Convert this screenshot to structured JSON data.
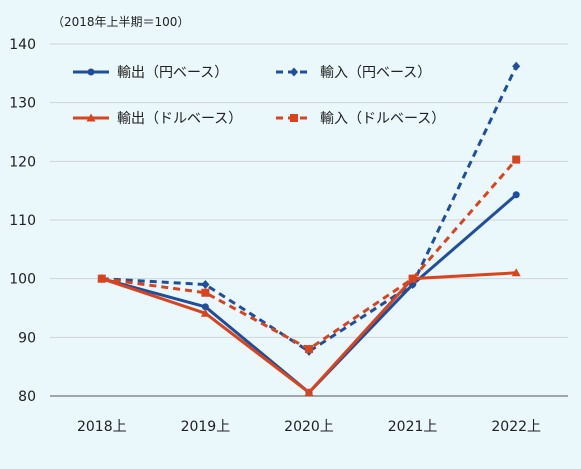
{
  "chart_data": {
    "type": "line",
    "unit_note": "（2018年上半期＝100）",
    "categories": [
      "2018上",
      "2019上",
      "2020上",
      "2021上",
      "2022上"
    ],
    "ylim": [
      80,
      140
    ],
    "yticks": [
      80,
      90,
      100,
      110,
      120,
      130,
      140
    ],
    "grid": true,
    "legend_position": "top",
    "series": [
      {
        "name": "輸出（円ベース）",
        "values": [
          100,
          95.2,
          80.6,
          99,
          114.3
        ],
        "color": "#1f4e9c",
        "dash": false,
        "marker": "circle"
      },
      {
        "name": "輸入（円ベース）",
        "values": [
          100,
          99,
          87.6,
          99,
          136.2
        ],
        "color": "#1f4e9c",
        "dash": true,
        "marker": "diamond"
      },
      {
        "name": "輸出（ドルベース）",
        "values": [
          100,
          94.1,
          80.6,
          100,
          101
        ],
        "color": "#d9441c",
        "dash": false,
        "marker": "triangle"
      },
      {
        "name": "輸入（ドルベース）",
        "values": [
          100,
          97.6,
          88,
          100,
          120.3
        ],
        "color": "#d9441c",
        "dash": true,
        "marker": "square"
      }
    ]
  }
}
